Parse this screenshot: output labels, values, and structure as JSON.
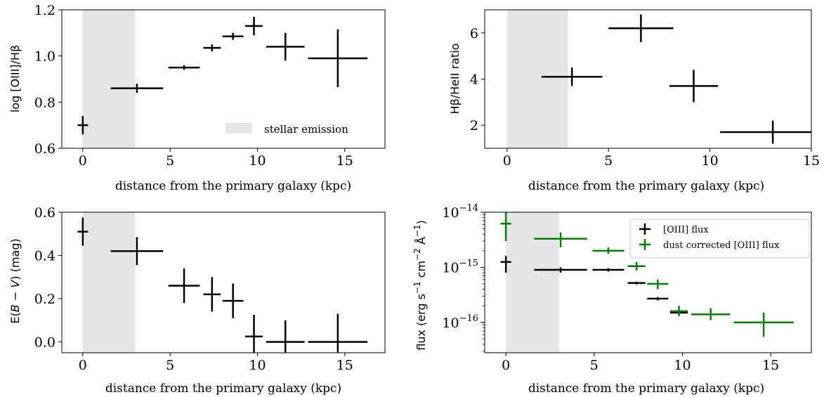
{
  "colors": {
    "black": "#000000",
    "green": "#008000",
    "shade": "#e5e5e5"
  },
  "chart_data": [
    {
      "id": "oiii_hb",
      "type": "scatter",
      "xlabel": "distance from the primary galaxy (kpc)",
      "ylabel": "log [OIII]/Hβ",
      "xlim": [
        -1.2,
        17.3
      ],
      "ylim": [
        0.6,
        1.2
      ],
      "xticks": [
        0,
        5,
        10,
        15
      ],
      "yticks": [
        0.6,
        0.8,
        1.0,
        1.2
      ],
      "ytick_labels": [
        "0.6",
        "0.8",
        "1.0",
        "1.2"
      ],
      "shade": [
        0,
        3
      ],
      "legend": {
        "position": "lower-right",
        "entries": [
          "stellar emission"
        ]
      },
      "series": [
        {
          "color": "black",
          "points": [
            {
              "x": 0,
              "y": 0.7,
              "xerr": 0.3,
              "yerr": 0.04
            },
            {
              "x": 3.1,
              "y": 0.86,
              "xerr": 1.5,
              "yerr": 0.02
            },
            {
              "x": 5.8,
              "y": 0.95,
              "xerr": 0.9,
              "yerr": 0.01
            },
            {
              "x": 7.4,
              "y": 1.035,
              "xerr": 0.5,
              "yerr": 0.015
            },
            {
              "x": 8.6,
              "y": 1.085,
              "xerr": 0.6,
              "yerr": 0.015
            },
            {
              "x": 9.8,
              "y": 1.13,
              "xerr": 0.5,
              "yerr": 0.04
            },
            {
              "x": 11.6,
              "y": 1.04,
              "xerr": 1.1,
              "yerr": 0.06
            },
            {
              "x": 14.6,
              "y": 0.99,
              "xerr": 1.7,
              "yerr": 0.125
            }
          ]
        }
      ]
    },
    {
      "id": "hb_heii",
      "type": "scatter",
      "xlabel": "distance from the primary galaxy (kpc)",
      "ylabel": "Hβ/HeII ratio",
      "xlim": [
        -1.1,
        15
      ],
      "ylim": [
        1,
        7
      ],
      "xticks": [
        0,
        5,
        10,
        15
      ],
      "yticks": [
        2,
        4,
        6
      ],
      "ytick_labels": [
        "2",
        "4",
        "6"
      ],
      "shade": [
        0,
        3
      ],
      "series": [
        {
          "color": "black",
          "points": [
            {
              "x": 3.2,
              "y": 4.1,
              "xerr": 1.5,
              "yerr": 0.4
            },
            {
              "x": 6.6,
              "y": 6.2,
              "xerr": 1.6,
              "yerr": 0.6
            },
            {
              "x": 9.2,
              "y": 3.7,
              "xerr": 1.2,
              "yerr": 0.7
            },
            {
              "x": 13.1,
              "y": 1.7,
              "xerr": 2.6,
              "yerr": 0.5
            }
          ]
        }
      ]
    },
    {
      "id": "ebv",
      "type": "scatter",
      "xlabel": "distance from the primary galaxy (kpc)",
      "ylabel_prefix": "E(",
      "ylabel_b": "B",
      "ylabel_mid": " − ",
      "ylabel_v": "V",
      "ylabel_suffix": ") (mag)",
      "xlim": [
        -1.2,
        17.3
      ],
      "ylim": [
        -0.05,
        0.6
      ],
      "xticks": [
        0,
        5,
        10,
        15
      ],
      "yticks": [
        0.0,
        0.2,
        0.4,
        0.6
      ],
      "ytick_labels": [
        "0.0",
        "0.2",
        "0.4",
        "0.6"
      ],
      "shade": [
        0,
        3
      ],
      "series": [
        {
          "color": "black",
          "points": [
            {
              "x": 0,
              "y": 0.51,
              "xerr": 0.3,
              "yerr": 0.065
            },
            {
              "x": 3.1,
              "y": 0.42,
              "xerr": 1.5,
              "yerr": 0.065
            },
            {
              "x": 5.8,
              "y": 0.26,
              "xerr": 0.9,
              "yerr": 0.08
            },
            {
              "x": 7.4,
              "y": 0.22,
              "xerr": 0.5,
              "yerr": 0.08
            },
            {
              "x": 8.6,
              "y": 0.19,
              "xerr": 0.6,
              "yerr": 0.08
            },
            {
              "x": 9.8,
              "y": 0.025,
              "xerr": 0.5,
              "yerr": 0.1
            },
            {
              "x": 11.6,
              "y": 0.0,
              "xerr": 1.1,
              "yerr": 0.1
            },
            {
              "x": 14.6,
              "y": 0.0,
              "xerr": 1.7,
              "yerr": 0.13
            }
          ]
        }
      ]
    },
    {
      "id": "flux",
      "type": "scatter",
      "scale": "log",
      "xlabel": "distance from the primary galaxy (kpc)",
      "ylabel_main": "flux (erg s",
      "ylabel_exp1": "−1",
      "ylabel_mid": " cm",
      "ylabel_exp2": "−2",
      "ylabel_unit": " Å",
      "ylabel_exp3": "−1",
      "ylabel_close": ")",
      "xlim": [
        -1.2,
        17.3
      ],
      "ylim_log10": [
        -16.55,
        -14
      ],
      "xticks": [
        0,
        5,
        10,
        15
      ],
      "yticks_log10": [
        -16,
        -15,
        -14
      ],
      "ytick_base": "10",
      "ytick_exponents": [
        "−16",
        "−15",
        "−14"
      ],
      "shade": [
        0,
        3
      ],
      "legend": {
        "position": "top-right",
        "entries": [
          "[OIII] flux",
          "dust corrected [OIII] flux"
        ]
      },
      "series": [
        {
          "name": "[OIII] flux",
          "color": "black",
          "points": [
            {
              "x": 0,
              "y": 1.25e-15,
              "ylo": 8e-16,
              "yhi": 1.6e-15,
              "xerr": 0.3
            },
            {
              "x": 3.1,
              "y": 9e-16,
              "ylo": 8e-16,
              "yhi": 1e-15,
              "xerr": 1.5
            },
            {
              "x": 5.8,
              "y": 9e-16,
              "ylo": 8.4e-16,
              "yhi": 9.6e-16,
              "xerr": 0.9
            },
            {
              "x": 7.4,
              "y": 5.2e-16,
              "ylo": 4.9e-16,
              "yhi": 5.5e-16,
              "xerr": 0.5
            },
            {
              "x": 8.6,
              "y": 2.7e-16,
              "ylo": 2.5e-16,
              "yhi": 2.9e-16,
              "xerr": 0.6
            },
            {
              "x": 9.8,
              "y": 1.5e-16,
              "ylo": 1.4e-16,
              "yhi": 1.6e-16,
              "xerr": 0.5
            }
          ]
        },
        {
          "name": "dust corrected [OIII] flux",
          "color": "green",
          "points": [
            {
              "x": 0,
              "y": 6.2e-15,
              "ylo": 3e-15,
              "yhi": 1e-14,
              "xerr": 0.3
            },
            {
              "x": 3.1,
              "y": 3.3e-15,
              "ylo": 2.3e-15,
              "yhi": 4.3e-15,
              "xerr": 1.5
            },
            {
              "x": 5.8,
              "y": 2e-15,
              "ylo": 1.75e-15,
              "yhi": 2.3e-15,
              "xerr": 0.9
            },
            {
              "x": 7.4,
              "y": 1.05e-15,
              "ylo": 8.8e-16,
              "yhi": 1.25e-15,
              "xerr": 0.5
            },
            {
              "x": 8.6,
              "y": 5e-16,
              "ylo": 4e-16,
              "yhi": 6e-16,
              "xerr": 0.6
            },
            {
              "x": 9.8,
              "y": 1.6e-16,
              "ylo": 1.3e-16,
              "yhi": 2e-16,
              "xerr": 0.5
            },
            {
              "x": 11.6,
              "y": 1.4e-16,
              "ylo": 1.1e-16,
              "yhi": 1.8e-16,
              "xerr": 1.1
            },
            {
              "x": 14.6,
              "y": 1e-16,
              "ylo": 5.5e-17,
              "yhi": 1.5e-16,
              "xerr": 1.7
            }
          ]
        }
      ]
    }
  ]
}
